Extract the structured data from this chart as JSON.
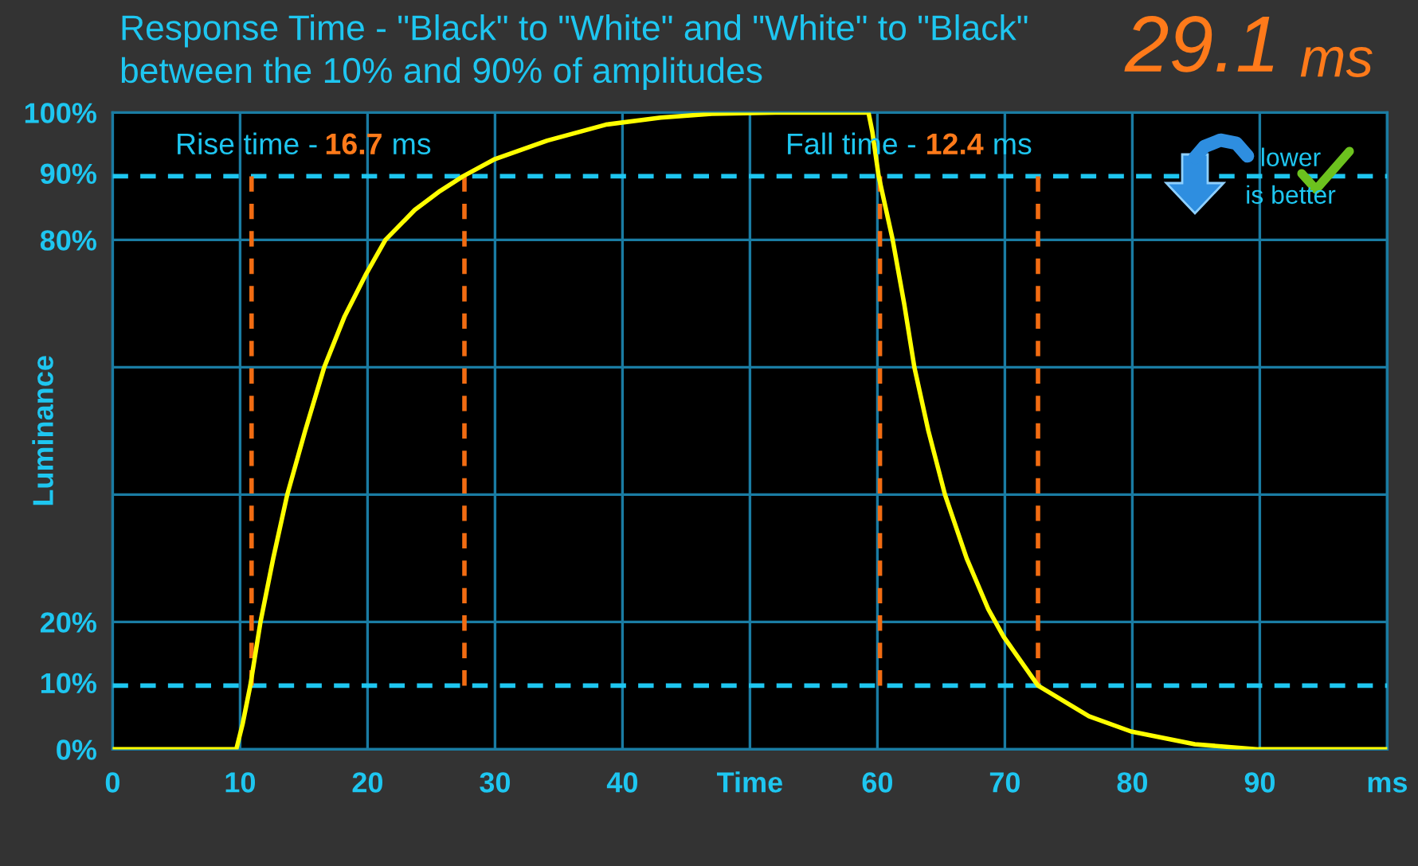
{
  "chart_data": {
    "type": "line",
    "title": "Response Time - \"Black\" to \"White\" and \"White\" to \"Black\"\nbetween the 10% and 90% of amplitudes",
    "ylabel": "Luminance",
    "xlim": [
      0,
      100
    ],
    "xticks": [
      0,
      10,
      20,
      30,
      40,
      {
        "value": 50,
        "label": "Time"
      },
      60,
      70,
      80,
      90,
      {
        "value": 100,
        "label": "ms"
      }
    ],
    "ylim": [
      0,
      100
    ],
    "yticks": [
      {
        "value": 0,
        "label": "0%"
      },
      {
        "value": 20,
        "label": "20%"
      },
      {
        "value": 40,
        "label": null
      },
      {
        "value": 60,
        "label": null
      },
      {
        "value": 80,
        "label": "80%"
      },
      {
        "value": 100,
        "label": "100%"
      }
    ],
    "grid": true,
    "line_style": "solid",
    "ref_lines": [
      {
        "axis": "y",
        "value": 10,
        "label": "10%",
        "color": "#1ec6f0",
        "line_style": "dashed"
      },
      {
        "axis": "y",
        "value": 90,
        "label": "90%",
        "color": "#1ec6f0",
        "line_style": "dashed"
      }
    ],
    "series": [
      {
        "color": "#ffff00",
        "x": [
          0,
          9.7,
          10.2,
          10.8,
          11.6,
          12.6,
          13.7,
          15.1,
          16.6,
          18.2,
          19.9,
          21.4,
          23.7,
          25.7,
          27.5,
          30,
          34.1,
          38.7,
          43,
          47,
          52,
          59.3,
          59.6,
          60.1,
          61.2,
          62.1,
          62.9,
          64,
          65.3,
          67,
          68.7,
          69.9,
          72.6,
          76.6,
          79.9,
          84.9,
          89.9,
          100
        ],
        "values": [
          0,
          0,
          4,
          10,
          20,
          30,
          40,
          50,
          60,
          68,
          74.7,
          80,
          84.7,
          87.7,
          90,
          92.7,
          95.6,
          98.1,
          99.2,
          99.8,
          100,
          100,
          97,
          90,
          80,
          70,
          60,
          50,
          40,
          30,
          22,
          17.7,
          10,
          5.2,
          2.8,
          0.8,
          0,
          0
        ]
      },
      {
        "color": "#f26c12",
        "line_style": "dashed",
        "x": [
          10.9,
          10.9
        ],
        "values": [
          10,
          90
        ]
      },
      {
        "color": "#f26c12",
        "line_style": "dashed",
        "x": [
          27.6,
          27.6
        ],
        "values": [
          10,
          90
        ]
      },
      {
        "color": "#f26c12",
        "line_style": "dashed",
        "x": [
          60.2,
          60.2
        ],
        "values": [
          10,
          90
        ]
      },
      {
        "color": "#f26c12",
        "line_style": "dashed",
        "x": [
          72.6,
          72.6
        ],
        "values": [
          10,
          90
        ]
      }
    ],
    "annotations": [
      "Rise time -",
      "16.7",
      "ms",
      "Fall time -",
      "12.4",
      "ms",
      "29.1",
      "ms",
      "lower\nis better"
    ]
  }
}
